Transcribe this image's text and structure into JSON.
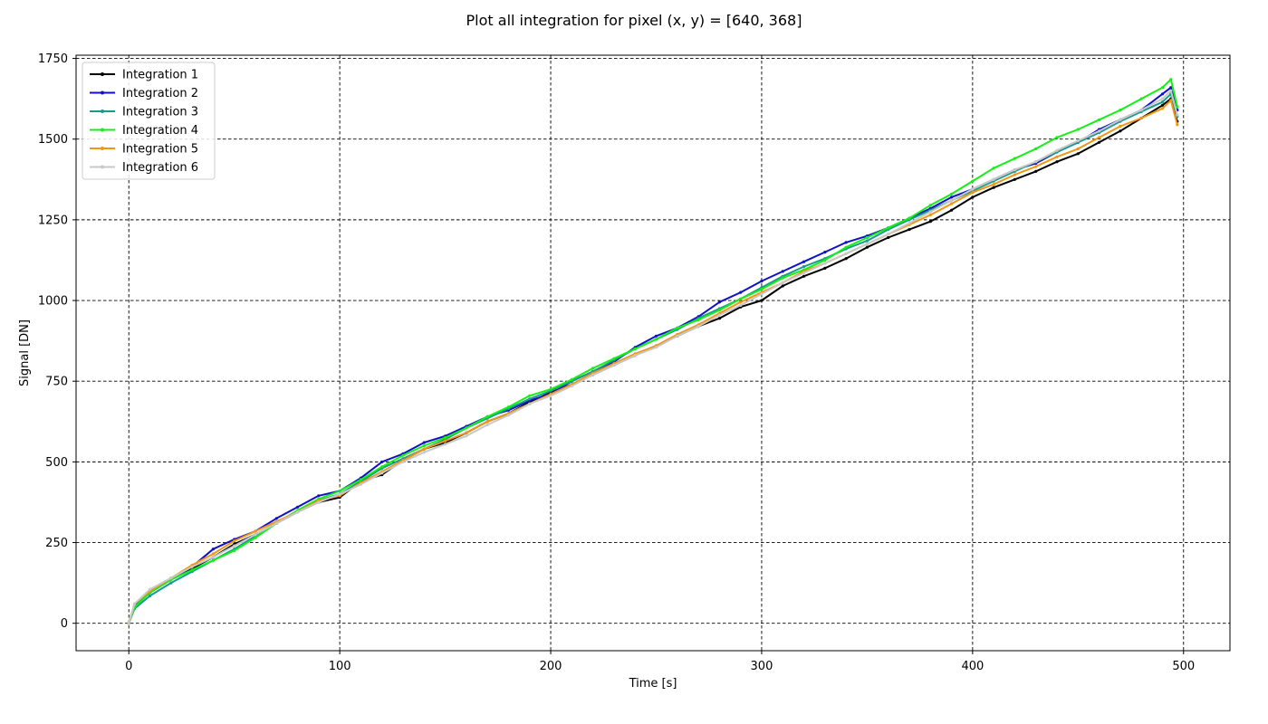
{
  "chart_data": {
    "type": "line",
    "title": "Plot all integration for pixel (x, y) = [640, 368]",
    "xlabel": "Time [s]",
    "ylabel": "Signal [DN]",
    "xlim": [
      -25,
      522
    ],
    "ylim": [
      -85,
      1760
    ],
    "xticks": [
      0,
      100,
      200,
      300,
      400,
      500
    ],
    "yticks": [
      0,
      250,
      500,
      750,
      1000,
      1250,
      1500,
      1750
    ],
    "grid": true,
    "legend_position": "top-left",
    "series": [
      {
        "name": "Integration 1",
        "color": "#000000",
        "x": [
          0,
          2.7,
          10,
          20,
          30,
          40,
          50,
          60,
          70,
          80,
          90,
          100,
          110,
          120,
          130,
          140,
          150,
          160,
          170,
          180,
          190,
          200,
          210,
          220,
          230,
          240,
          250,
          260,
          270,
          280,
          290,
          300,
          310,
          320,
          330,
          340,
          350,
          360,
          370,
          380,
          390,
          400,
          410,
          420,
          430,
          440,
          450,
          460,
          470,
          480,
          490,
          494,
          497
        ],
        "y": [
          0,
          55,
          100,
          140,
          170,
          205,
          245,
          275,
          310,
          345,
          375,
          390,
          440,
          460,
          505,
          540,
          560,
          590,
          625,
          650,
          685,
          715,
          740,
          770,
          800,
          830,
          860,
          890,
          920,
          945,
          980,
          1000,
          1045,
          1075,
          1100,
          1130,
          1165,
          1195,
          1220,
          1245,
          1280,
          1320,
          1350,
          1375,
          1400,
          1430,
          1455,
          1490,
          1525,
          1565,
          1605,
          1625,
          1555
        ]
      },
      {
        "name": "Integration 2",
        "color": "#1010c8",
        "x": [
          0,
          2.7,
          10,
          20,
          30,
          40,
          50,
          60,
          70,
          80,
          90,
          100,
          110,
          120,
          130,
          140,
          150,
          160,
          170,
          180,
          190,
          200,
          210,
          220,
          230,
          240,
          250,
          260,
          270,
          280,
          290,
          300,
          310,
          320,
          330,
          340,
          350,
          360,
          370,
          380,
          390,
          400,
          410,
          420,
          430,
          440,
          450,
          460,
          470,
          480,
          490,
          494,
          497
        ],
        "y": [
          0,
          55,
          95,
          135,
          175,
          230,
          260,
          285,
          325,
          360,
          395,
          410,
          450,
          500,
          525,
          560,
          580,
          610,
          640,
          660,
          690,
          710,
          750,
          780,
          810,
          855,
          890,
          915,
          950,
          995,
          1025,
          1060,
          1090,
          1120,
          1150,
          1180,
          1200,
          1225,
          1255,
          1285,
          1320,
          1345,
          1375,
          1405,
          1425,
          1460,
          1490,
          1530,
          1560,
          1590,
          1640,
          1660,
          1590
        ]
      },
      {
        "name": "Integration 3",
        "color": "#179c8c",
        "x": [
          0,
          2.7,
          10,
          20,
          30,
          40,
          50,
          60,
          70,
          80,
          90,
          100,
          110,
          120,
          130,
          140,
          150,
          160,
          170,
          180,
          190,
          200,
          210,
          220,
          230,
          240,
          250,
          260,
          270,
          280,
          290,
          300,
          310,
          320,
          330,
          340,
          350,
          360,
          370,
          380,
          390,
          400,
          410,
          420,
          430,
          440,
          450,
          460,
          470,
          480,
          490,
          494,
          497
        ],
        "y": [
          0,
          45,
          85,
          125,
          160,
          195,
          230,
          270,
          310,
          345,
          380,
          400,
          440,
          480,
          510,
          540,
          570,
          605,
          635,
          665,
          695,
          720,
          750,
          780,
          815,
          850,
          880,
          910,
          945,
          975,
          1005,
          1040,
          1075,
          1105,
          1130,
          1160,
          1185,
          1220,
          1250,
          1280,
          1310,
          1340,
          1370,
          1400,
          1430,
          1460,
          1490,
          1520,
          1555,
          1585,
          1615,
          1640,
          1570
        ]
      },
      {
        "name": "Integration 4",
        "color": "#14f014",
        "x": [
          0,
          2.7,
          10,
          20,
          30,
          40,
          50,
          60,
          70,
          80,
          90,
          100,
          110,
          120,
          130,
          140,
          150,
          160,
          170,
          180,
          190,
          200,
          210,
          220,
          230,
          240,
          250,
          260,
          270,
          280,
          290,
          300,
          310,
          320,
          330,
          340,
          350,
          360,
          370,
          380,
          390,
          400,
          410,
          420,
          430,
          440,
          450,
          460,
          470,
          480,
          490,
          494,
          497
        ],
        "y": [
          0,
          50,
          95,
          135,
          165,
          195,
          225,
          265,
          310,
          350,
          385,
          410,
          445,
          485,
          520,
          550,
          575,
          605,
          640,
          670,
          705,
          725,
          755,
          790,
          820,
          850,
          880,
          915,
          940,
          970,
          1005,
          1035,
          1070,
          1095,
          1125,
          1165,
          1195,
          1225,
          1255,
          1295,
          1330,
          1370,
          1410,
          1440,
          1470,
          1505,
          1530,
          1560,
          1590,
          1625,
          1660,
          1685,
          1600
        ]
      },
      {
        "name": "Integration 5",
        "color": "#f09614",
        "x": [
          0,
          2.7,
          10,
          20,
          30,
          40,
          50,
          60,
          70,
          80,
          90,
          100,
          110,
          120,
          130,
          140,
          150,
          160,
          170,
          180,
          190,
          200,
          210,
          220,
          230,
          240,
          250,
          260,
          270,
          280,
          290,
          300,
          310,
          320,
          330,
          340,
          350,
          360,
          370,
          380,
          390,
          400,
          410,
          420,
          430,
          440,
          450,
          460,
          470,
          480,
          490,
          494,
          497
        ],
        "y": [
          0,
          60,
          100,
          140,
          180,
          215,
          255,
          285,
          315,
          345,
          380,
          395,
          435,
          470,
          505,
          540,
          565,
          590,
          625,
          650,
          680,
          710,
          740,
          775,
          805,
          835,
          860,
          895,
          925,
          960,
          995,
          1025,
          1055,
          1090,
          1115,
          1145,
          1175,
          1205,
          1235,
          1265,
          1300,
          1335,
          1360,
          1390,
          1415,
          1445,
          1470,
          1505,
          1540,
          1565,
          1595,
          1620,
          1545
        ]
      },
      {
        "name": "Integration 6",
        "color": "#c8c8c8",
        "x": [
          0,
          2.7,
          10,
          20,
          30,
          40,
          50,
          60,
          70,
          80,
          90,
          100,
          110,
          120,
          130,
          140,
          150,
          160,
          170,
          180,
          190,
          200,
          210,
          220,
          230,
          240,
          250,
          260,
          270,
          280,
          290,
          300,
          310,
          320,
          330,
          340,
          350,
          360,
          370,
          380,
          390,
          400,
          410,
          420,
          430,
          440,
          450,
          460,
          470,
          480,
          490,
          494,
          497
        ],
        "y": [
          0,
          60,
          105,
          140,
          175,
          205,
          240,
          275,
          310,
          345,
          375,
          400,
          430,
          465,
          500,
          530,
          555,
          580,
          615,
          645,
          680,
          705,
          735,
          770,
          800,
          830,
          855,
          890,
          920,
          955,
          985,
          1020,
          1055,
          1085,
          1115,
          1145,
          1175,
          1205,
          1240,
          1275,
          1310,
          1345,
          1375,
          1405,
          1430,
          1465,
          1495,
          1525,
          1560,
          1590,
          1625,
          1650,
          1575
        ]
      }
    ]
  }
}
